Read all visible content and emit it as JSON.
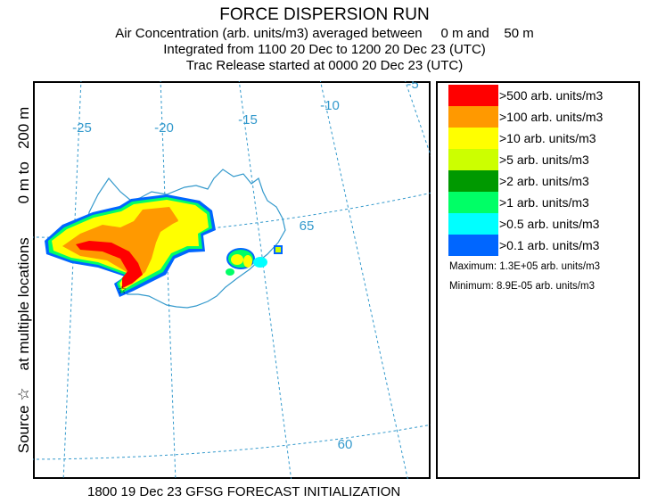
{
  "header": {
    "title": "FORCE DISPERSION RUN",
    "line1": "Air Concentration (arb. units/m3) averaged between     0 m and    50 m",
    "line2": "Integrated from 1100 20 Dec to 1200 20 Dec 23 (UTC)",
    "line3": "Trac Release started at 0000 20 Dec 23 (UTC)"
  },
  "side_label": "Source ☆    at multiple locations        0 m to   200 m",
  "footer": "1800 19 Dec 23 GFSG FORECAST INITIALIZATION",
  "map": {
    "lon_labels": [
      "-25",
      "-20",
      "-15",
      "-10",
      "-5"
    ],
    "lat_labels": [
      "65",
      "60"
    ],
    "grid_color": "#3399cc",
    "coast_color": "#3399cc"
  },
  "legend": {
    "items": [
      {
        "label": ">500 arb. units/m3",
        "color": "#ff0000"
      },
      {
        "label": ">100 arb. units/m3",
        "color": "#ff9900"
      },
      {
        "label": ">10 arb. units/m3",
        "color": "#ffff00"
      },
      {
        "label": ">5 arb. units/m3",
        "color": "#ccff00"
      },
      {
        "label": ">2 arb. units/m3",
        "color": "#009900"
      },
      {
        "label": ">1 arb. units/m3",
        "color": "#00ff66"
      },
      {
        "label": ">0.5 arb. units/m3",
        "color": "#00ffff"
      },
      {
        "label": ">0.1 arb. units/m3",
        "color": "#0066ff"
      }
    ],
    "maximum": "Maximum: 1.3E+05 arb. units/m3",
    "minimum": "Minimum: 8.9E-05 arb. units/m3"
  }
}
